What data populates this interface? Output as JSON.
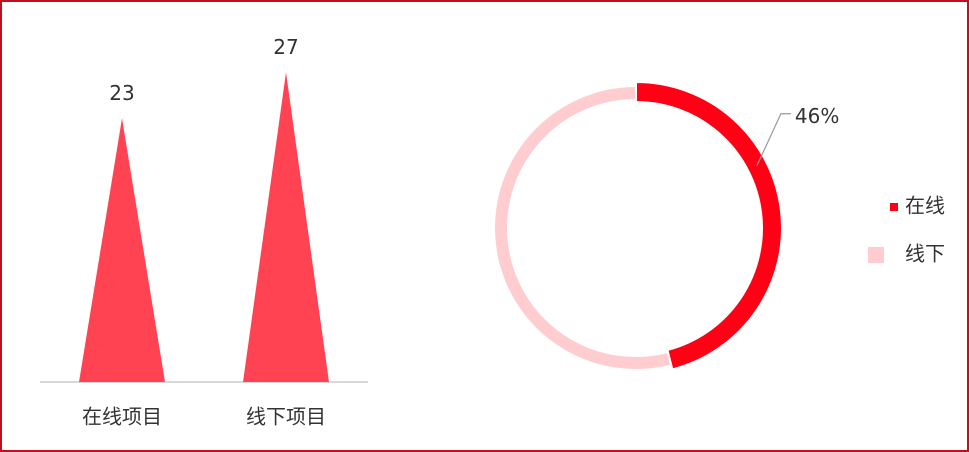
{
  "chart_data": [
    {
      "type": "pictorial-bar",
      "categories": [
        "在线项目",
        "线下项目"
      ],
      "values": [
        23,
        27
      ],
      "color": "#ff4352",
      "ylim": [
        0,
        30
      ]
    },
    {
      "type": "donut",
      "categories": [
        "在线",
        "线下"
      ],
      "values": [
        46,
        54
      ],
      "value_labels": [
        "46%",
        null
      ],
      "colors": [
        "#ff0014",
        "#ffcdd0"
      ],
      "legend": "right"
    }
  ]
}
